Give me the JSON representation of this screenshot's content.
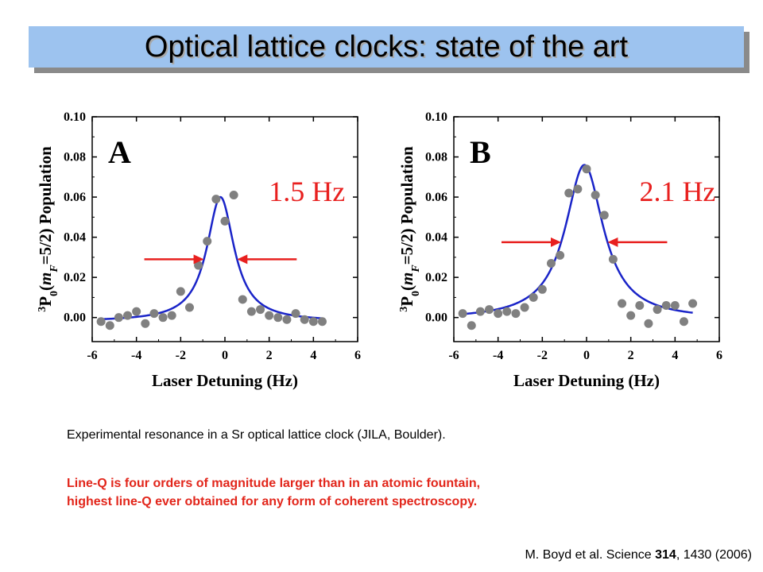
{
  "title": "Optical lattice clocks: state of the art",
  "chart_data": [
    {
      "type": "scatter",
      "panel": "A",
      "linewidth_label": "1.5 Hz",
      "xlabel": "Laser Detuning (Hz)",
      "ylabel": "3P0(mF=5/2) Population",
      "ylabel_parts": {
        "sup": "3",
        "P": "P",
        "sub0": "0",
        "open": "(",
        "m": "m",
        "F": "F",
        "eq": "=5/2)",
        "rest": " Population"
      },
      "xlim": [
        -6,
        6
      ],
      "ylim": [
        -0.012,
        0.1
      ],
      "xticks": [
        "-6",
        "-4",
        "-2",
        "0",
        "2",
        "4",
        "6"
      ],
      "yticks": [
        "0.00",
        "0.02",
        "0.04",
        "0.06",
        "0.08",
        "0.10"
      ],
      "series": [
        {
          "kind": "points",
          "x": [
            -5.6,
            -5.2,
            -4.8,
            -4.4,
            -4.0,
            -3.6,
            -3.2,
            -2.8,
            -2.4,
            -2.0,
            -1.6,
            -1.2,
            -0.8,
            -0.4,
            0.0,
            0.4,
            0.8,
            1.2,
            1.6,
            2.0,
            2.4,
            2.8,
            3.2,
            3.6,
            4.0,
            4.4
          ],
          "y": [
            -0.002,
            -0.004,
            0.0,
            0.001,
            0.003,
            -0.003,
            0.002,
            0.0,
            0.001,
            0.013,
            0.005,
            0.026,
            0.038,
            0.059,
            0.048,
            0.061,
            0.009,
            0.003,
            0.004,
            0.001,
            0.0,
            -0.001,
            0.002,
            -0.001,
            -0.002,
            -0.002
          ],
          "color": "#808080"
        },
        {
          "kind": "lorentzian_fit",
          "center": -0.2,
          "fwhm": 1.5,
          "amplitude": 0.062,
          "offset": -0.002,
          "x_range": [
            -5.6,
            4.4
          ],
          "color": "#1a24c8"
        }
      ],
      "arrows_color": "#e8201f"
    },
    {
      "type": "scatter",
      "panel": "B",
      "linewidth_label": "2.1 Hz",
      "xlabel": "Laser Detuning (Hz)",
      "ylabel": "3P0(mF=5/2) Population",
      "ylabel_parts": {
        "sup": "3",
        "P": "P",
        "sub0": "0",
        "open": "(",
        "m": "m",
        "F": "F",
        "eq": "=5/2)",
        "rest": " Population"
      },
      "xlim": [
        -6,
        6
      ],
      "ylim": [
        -0.012,
        0.1
      ],
      "xticks": [
        "-6",
        "-4",
        "-2",
        "0",
        "2",
        "4",
        "6"
      ],
      "yticks": [
        "0.00",
        "0.02",
        "0.04",
        "0.06",
        "0.08",
        "0.10"
      ],
      "series": [
        {
          "kind": "points",
          "x": [
            -5.6,
            -5.2,
            -4.8,
            -4.4,
            -4.0,
            -3.6,
            -3.2,
            -2.8,
            -2.4,
            -2.0,
            -1.6,
            -1.2,
            -0.8,
            -0.4,
            0.0,
            0.4,
            0.8,
            1.2,
            1.6,
            2.0,
            2.4,
            2.8,
            3.2,
            3.6,
            4.0,
            4.4,
            4.8
          ],
          "y": [
            0.002,
            -0.004,
            0.003,
            0.004,
            0.002,
            0.003,
            0.002,
            0.005,
            0.01,
            0.014,
            0.027,
            0.031,
            0.062,
            0.064,
            0.074,
            0.061,
            0.051,
            0.029,
            0.007,
            0.001,
            0.006,
            -0.003,
            0.004,
            0.006,
            0.006,
            -0.002,
            0.007
          ],
          "color": "#808080"
        },
        {
          "kind": "lorentzian_fit",
          "center": -0.1,
          "fwhm": 2.1,
          "amplitude": 0.077,
          "offset": -0.001,
          "x_range": [
            -5.6,
            4.8
          ],
          "color": "#1a24c8"
        }
      ],
      "arrows_color": "#e8201f"
    }
  ],
  "caption": "Experimental resonance in a Sr optical lattice clock (JILA, Boulder).",
  "highlight": {
    "line1": "Line-Q is four orders of magnitude larger than in an atomic fountain,",
    "line2": "highest line-Q ever obtained for any form of coherent spectroscopy."
  },
  "reference": {
    "prefix": "M. Boyd et al. Science ",
    "volume": "314",
    "suffix": ", 1430 (2006)"
  }
}
